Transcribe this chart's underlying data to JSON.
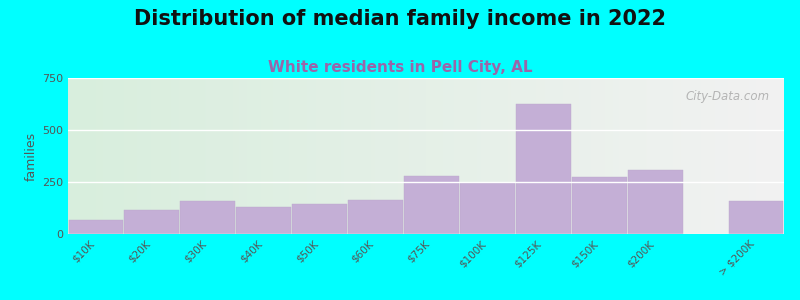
{
  "title": "Distribution of median family income in 2022",
  "subtitle": "White residents in Pell City, AL",
  "categories": [
    "$10K",
    "$20K",
    "$30K",
    "$40K",
    "$50K",
    "$60K",
    "$75K",
    "$100K",
    "$125K",
    "$150K",
    "$200K",
    "> $200K"
  ],
  "values": [
    65,
    115,
    160,
    130,
    145,
    165,
    280,
    245,
    625,
    275,
    310,
    160
  ],
  "bar_color": "#c4afd6",
  "background_color": "#00ffff",
  "plot_bg_color_left": "#d8eedd",
  "plot_bg_color_right": "#f2f2f2",
  "title_fontsize": 15,
  "subtitle_fontsize": 11,
  "subtitle_color": "#9966aa",
  "ylabel": "families",
  "ylabel_color": "#555555",
  "ylim": [
    0,
    750
  ],
  "yticks": [
    0,
    250,
    500,
    750
  ],
  "ytick_color": "#555555",
  "xtick_color": "#555555",
  "watermark_text": "City-Data.com",
  "watermark_color": "#aaaaaa",
  "grid_color": "#ffffff",
  "bar_linewidth": 0.3,
  "bar_edge_color": "#bbaacc"
}
